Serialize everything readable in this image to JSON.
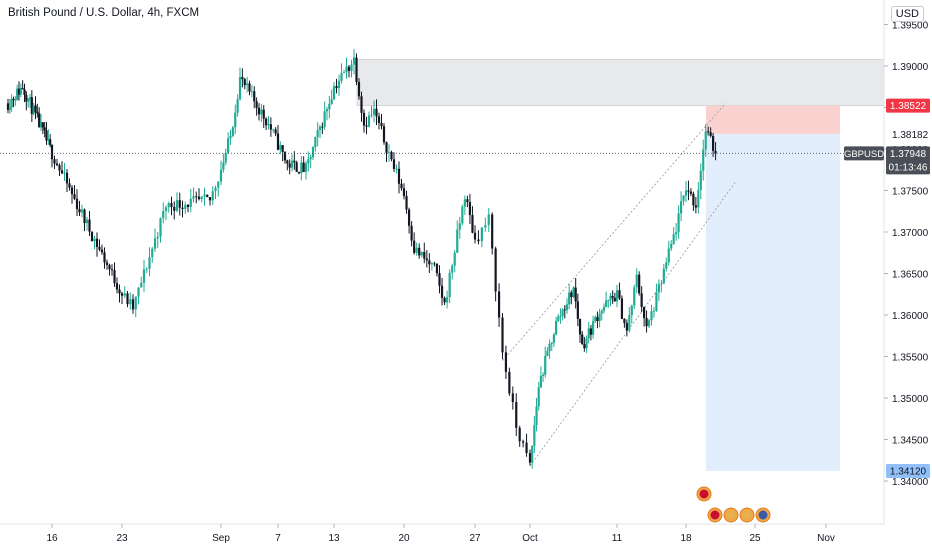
{
  "header": {
    "symbol_title": "British Pound / U.S. Dollar, 4h, FXCM",
    "currency": "USD"
  },
  "price_axis": {
    "ticks": [
      "1.39500",
      "1.39000",
      "1.38500",
      "1.38000",
      "1.37500",
      "1.37000",
      "1.36500",
      "1.36000",
      "1.35500",
      "1.35000",
      "1.34500",
      "1.34000"
    ],
    "tick_values": [
      1.395,
      1.39,
      1.385,
      1.38,
      1.375,
      1.37,
      1.365,
      1.36,
      1.355,
      1.35,
      1.345,
      1.34
    ],
    "stop_label": "1.38522",
    "stop_value": 1.38522,
    "entry_label": "1.38182",
    "entry_value": 1.38182,
    "current_symbol": "GBPUSD",
    "current_price": "1.37948",
    "current_value": 1.37948,
    "countdown": "01:13:46",
    "target_label": "1.34120",
    "target_value": 1.3412
  },
  "time_axis": {
    "labels": [
      "16",
      "23",
      "Sep",
      "7",
      "13",
      "20",
      "27",
      "Oct",
      "11",
      "18",
      "25",
      "Nov"
    ]
  },
  "colors": {
    "up": "#22ab94",
    "down": "#131722",
    "stop_zone": "#f9c9c5",
    "target_zone": "#e3eefc",
    "supply_zone": "#e4e5e8",
    "stop_badge": "#f23645",
    "target_badge": "#90bff9",
    "price_badge": "#4a4e57"
  },
  "chart_data": {
    "type": "candlestick",
    "symbol": "GBPUSD",
    "timeframe": "4h",
    "x_labels": [
      "16",
      "23",
      "Sep",
      "7",
      "13",
      "20",
      "27",
      "Oct",
      "11",
      "18",
      "25",
      "Nov"
    ],
    "ylim": [
      1.338,
      1.3975
    ],
    "key_points": [
      {
        "date": "Aug 10",
        "price": 1.3855
      },
      {
        "date": "Aug 12",
        "price": 1.3875
      },
      {
        "date": "Aug 16",
        "price": 1.3795
      },
      {
        "date": "Aug 18",
        "price": 1.3745
      },
      {
        "date": "Aug 23",
        "price": 1.3625
      },
      {
        "date": "Aug 24",
        "price": 1.3608
      },
      {
        "date": "Aug 27",
        "price": 1.3732
      },
      {
        "date": "Aug 31",
        "price": 1.3738
      },
      {
        "date": "Sep 2",
        "price": 1.3815
      },
      {
        "date": "Sep 3",
        "price": 1.3885
      },
      {
        "date": "Sep 6",
        "price": 1.383
      },
      {
        "date": "Sep 8",
        "price": 1.3782
      },
      {
        "date": "Sep 10",
        "price": 1.3775
      },
      {
        "date": "Sep 13",
        "price": 1.3875
      },
      {
        "date": "Sep 15",
        "price": 1.3908
      },
      {
        "date": "Sep 16",
        "price": 1.383
      },
      {
        "date": "Sep 17",
        "price": 1.3845
      },
      {
        "date": "Sep 20",
        "price": 1.3745
      },
      {
        "date": "Sep 21",
        "price": 1.368
      },
      {
        "date": "Sep 23",
        "price": 1.3655
      },
      {
        "date": "Sep 24",
        "price": 1.3612
      },
      {
        "date": "Sep 26",
        "price": 1.3745
      },
      {
        "date": "Sep 27",
        "price": 1.369
      },
      {
        "date": "Sep 28",
        "price": 1.3715
      },
      {
        "date": "Sep 29",
        "price": 1.3555
      },
      {
        "date": "Sep 30",
        "price": 1.3465
      },
      {
        "date": "Oct 1",
        "price": 1.3418
      },
      {
        "date": "Oct 2",
        "price": 1.3515
      },
      {
        "date": "Oct 4",
        "price": 1.359
      },
      {
        "date": "Oct 6",
        "price": 1.3632
      },
      {
        "date": "Oct 7",
        "price": 1.3562
      },
      {
        "date": "Oct 9",
        "price": 1.3605
      },
      {
        "date": "Oct 11",
        "price": 1.3625
      },
      {
        "date": "Oct 12",
        "price": 1.358
      },
      {
        "date": "Oct 13",
        "price": 1.3645
      },
      {
        "date": "Oct 14",
        "price": 1.3582
      },
      {
        "date": "Oct 15",
        "price": 1.362
      },
      {
        "date": "Oct 17",
        "price": 1.3705
      },
      {
        "date": "Oct 18",
        "price": 1.3755
      },
      {
        "date": "Oct 19",
        "price": 1.3732
      },
      {
        "date": "Oct 20",
        "price": 1.3822
      },
      {
        "date": "Oct 21",
        "price": 1.37948
      }
    ],
    "position": {
      "type": "short",
      "entry": 1.38182,
      "stop": 1.38522,
      "target": 1.3412
    },
    "supply_zone": {
      "from": "Sep 15",
      "high": 1.3908,
      "low": 1.38522
    },
    "channel": {
      "lower": [
        {
          "date": "Oct 1",
          "price": 1.3418
        },
        {
          "date": "Oct 23",
          "price": 1.376
        }
      ],
      "upper": [
        {
          "date": "Sep 29",
          "price": 1.3545
        },
        {
          "date": "Oct 22",
          "price": 1.3855
        }
      ]
    }
  }
}
